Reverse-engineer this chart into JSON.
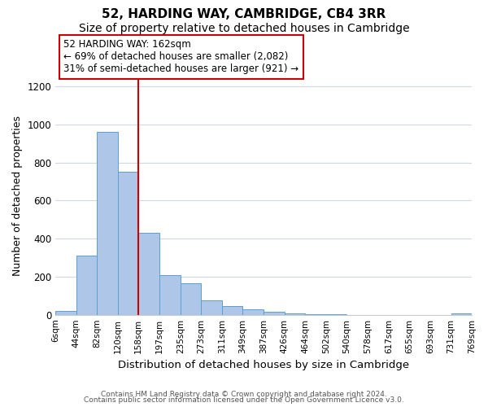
{
  "title": "52, HARDING WAY, CAMBRIDGE, CB4 3RR",
  "subtitle": "Size of property relative to detached houses in Cambridge",
  "xlabel": "Distribution of detached houses by size in Cambridge",
  "ylabel": "Number of detached properties",
  "bin_edges": [
    6,
    44,
    82,
    120,
    158,
    197,
    235,
    273,
    311,
    349,
    387,
    426,
    464,
    502,
    540,
    578,
    617,
    655,
    693,
    731,
    769
  ],
  "counts": [
    20,
    310,
    960,
    750,
    430,
    210,
    165,
    75,
    45,
    30,
    15,
    8,
    2,
    1,
    0,
    0,
    0,
    0,
    0,
    8
  ],
  "bar_color": "#aec6e8",
  "bar_edge_color": "#5a9fd4",
  "vline_x": 158,
  "vline_color": "#cc0000",
  "annotation_text": "52 HARDING WAY: 162sqm\n← 69% of detached houses are smaller (2,082)\n31% of semi-detached houses are larger (921) →",
  "annotation_box_color": "#ffffff",
  "annotation_box_edge_color": "#cc0000",
  "ylim": [
    0,
    1250
  ],
  "yticks": [
    0,
    200,
    400,
    600,
    800,
    1000,
    1200
  ],
  "footnote1": "Contains HM Land Registry data © Crown copyright and database right 2024.",
  "footnote2": "Contains public sector information licensed under the Open Government Licence v3.0.",
  "background_color": "#ffffff",
  "grid_color": "#d0d8e8",
  "title_fontsize": 11,
  "subtitle_fontsize": 10,
  "xlabel_fontsize": 9.5,
  "ylabel_fontsize": 9
}
